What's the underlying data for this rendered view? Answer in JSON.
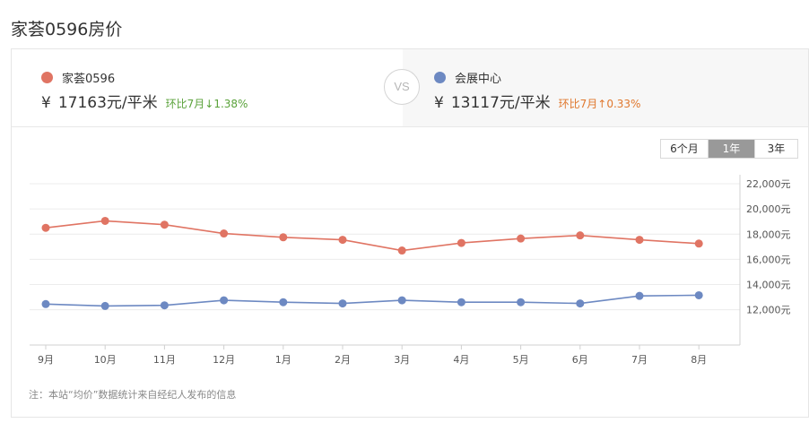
{
  "page": {
    "title": "家荟0596房价"
  },
  "compare": {
    "left": {
      "name": "家荟0596",
      "currency": "¥",
      "price": "17163元/平米",
      "change": "环比7月↓1.38%",
      "dot_color": "#e07463",
      "change_color": "#5aa23a"
    },
    "vs": "VS",
    "right": {
      "name": "会展中心",
      "currency": "¥",
      "price": "13117元/平米",
      "change": "环比7月↑0.33%",
      "dot_color": "#6d89c2",
      "change_color": "#e0782e"
    }
  },
  "range_tabs": {
    "items": [
      "6个月",
      "1年",
      "3年"
    ],
    "active": "1年"
  },
  "footnote": "注：本站“均价”数据统计来自经纪人发布的信息",
  "chart_data": {
    "type": "line",
    "categories": [
      "9月",
      "10月",
      "11月",
      "12月",
      "1月",
      "2月",
      "3月",
      "4月",
      "5月",
      "6月",
      "7月",
      "8月"
    ],
    "series": [
      {
        "name": "家荟0596",
        "color": "#e07463",
        "values": [
          18500,
          19050,
          18750,
          18050,
          17750,
          17550,
          16700,
          17300,
          17650,
          17900,
          17550,
          17250
        ]
      },
      {
        "name": "会展中心",
        "color": "#6d89c2",
        "values": [
          12450,
          12300,
          12350,
          12750,
          12600,
          12500,
          12750,
          12600,
          12600,
          12500,
          13100,
          13150
        ]
      }
    ],
    "yaxis": {
      "position": "right",
      "ticks": [
        12000,
        14000,
        16000,
        18000,
        20000,
        22000
      ],
      "tick_labels": [
        "12,000元",
        "14,000元",
        "16,000元",
        "18,000元",
        "20,000元",
        "22,000元"
      ],
      "ylim": [
        9200,
        22000
      ]
    },
    "grid": true,
    "legend": "none"
  }
}
